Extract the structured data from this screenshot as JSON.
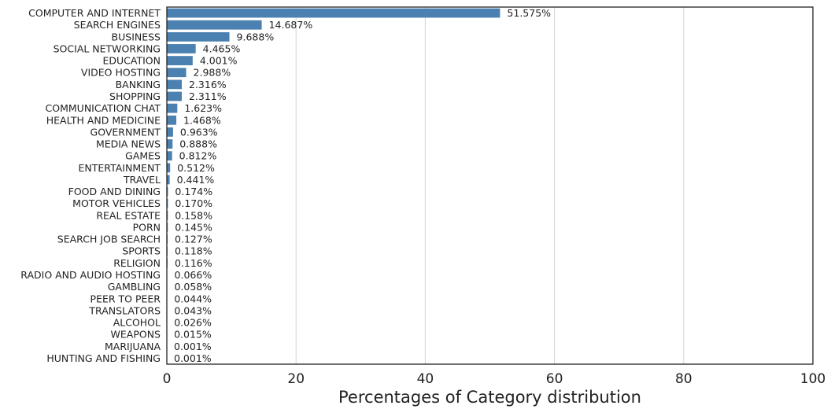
{
  "chart_data": {
    "type": "bar",
    "orientation": "horizontal",
    "categories": [
      "COMPUTER AND INTERNET",
      "SEARCH ENGINES",
      "BUSINESS",
      "SOCIAL NETWORKING",
      "EDUCATION",
      "VIDEO HOSTING",
      "BANKING",
      "SHOPPING",
      "COMMUNICATION CHAT",
      "HEALTH AND MEDICINE",
      "GOVERNMENT",
      "MEDIA NEWS",
      "GAMES",
      "ENTERTAINMENT",
      "TRAVEL",
      "FOOD AND DINING",
      "MOTOR VEHICLES",
      "REAL ESTATE",
      "PORN",
      "SEARCH JOB SEARCH",
      "SPORTS",
      "RELIGION",
      "RADIO AND AUDIO HOSTING",
      "GAMBLING",
      "PEER TO PEER",
      "TRANSLATORS",
      "ALCOHOL",
      "WEAPONS",
      "MARIJUANA",
      "HUNTING AND FISHING"
    ],
    "values": [
      51.575,
      14.687,
      9.688,
      4.465,
      4.001,
      2.988,
      2.316,
      2.311,
      1.623,
      1.468,
      0.963,
      0.888,
      0.812,
      0.512,
      0.441,
      0.174,
      0.17,
      0.158,
      0.145,
      0.127,
      0.118,
      0.116,
      0.066,
      0.058,
      0.044,
      0.043,
      0.026,
      0.015,
      0.001,
      0.001
    ],
    "value_labels": [
      "51.575%",
      "14.687%",
      "9.688%",
      "4.465%",
      "4.001%",
      "2.988%",
      "2.316%",
      "2.311%",
      "1.623%",
      "1.468%",
      "0.963%",
      "0.888%",
      "0.812%",
      "0.512%",
      "0.441%",
      "0.174%",
      "0.170%",
      "0.158%",
      "0.145%",
      "0.127%",
      "0.118%",
      "0.116%",
      "0.066%",
      "0.058%",
      "0.044%",
      "0.043%",
      "0.026%",
      "0.015%",
      "0.001%",
      "0.001%"
    ],
    "xlabel": "Percentages of Category distribution",
    "ylabel": "",
    "xlim": [
      0,
      100
    ],
    "xticks": [
      "0",
      "20",
      "40",
      "60",
      "80",
      "100"
    ],
    "grid": "vertical",
    "legend": "none",
    "bar_color": "#4b81b0"
  }
}
